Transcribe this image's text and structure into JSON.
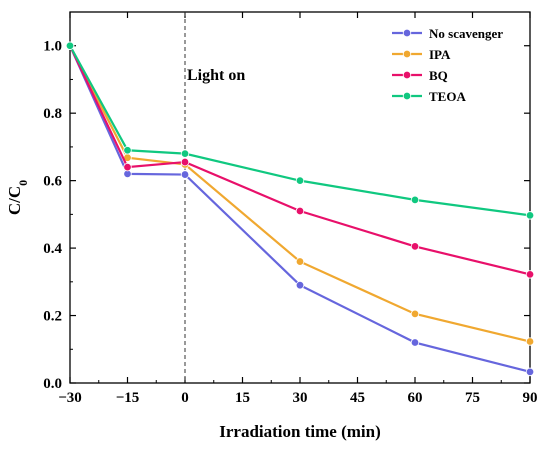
{
  "chart_data": {
    "type": "line",
    "xlabel": "Irradiation time (min)",
    "ylabel_main": "C/C",
    "ylabel_sub": "0",
    "xlim": [
      -30,
      90
    ],
    "ylim": [
      0,
      1.1
    ],
    "xticks": [
      -30,
      -15,
      0,
      15,
      30,
      45,
      60,
      75,
      90
    ],
    "xtick_labels": [
      "−30",
      "−15",
      "0",
      "15",
      "30",
      "45",
      "60",
      "75",
      "90"
    ],
    "yticks": [
      0.0,
      0.2,
      0.4,
      0.6,
      0.8,
      1.0
    ],
    "ytick_labels": [
      "0.0",
      "0.2",
      "0.4",
      "0.6",
      "0.8",
      "1.0"
    ],
    "x": [
      -30,
      -15,
      0,
      30,
      60,
      90
    ],
    "series": [
      {
        "name": "No scavenger",
        "color": "#6666dd",
        "values": [
          1.0,
          0.62,
          0.618,
          0.29,
          0.12,
          0.033
        ]
      },
      {
        "name": "IPA",
        "color": "#f0a830",
        "values": [
          1.0,
          0.668,
          0.648,
          0.36,
          0.205,
          0.123
        ]
      },
      {
        "name": "BQ",
        "color": "#e8106a",
        "values": [
          1.0,
          0.64,
          0.655,
          0.51,
          0.405,
          0.322
        ]
      },
      {
        "name": "TEOA",
        "color": "#10c880",
        "values": [
          1.0,
          0.69,
          0.68,
          0.6,
          0.543,
          0.497
        ]
      }
    ],
    "annotation": {
      "text": "Light on",
      "at_x": 0
    },
    "legend_position": "top-right",
    "grid": false
  }
}
